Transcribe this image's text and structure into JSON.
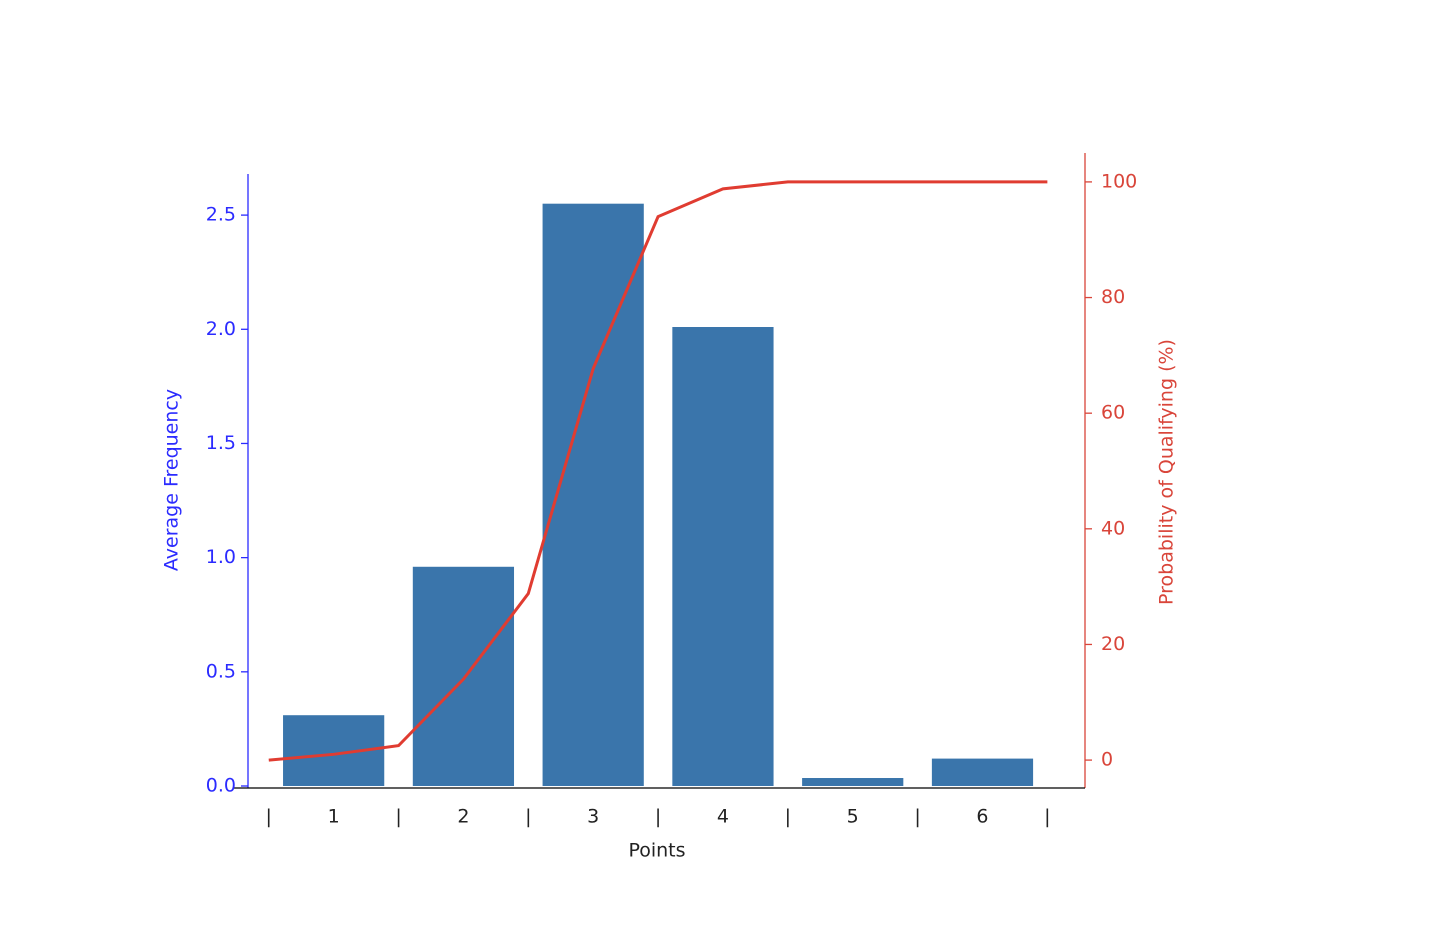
{
  "chart_data": {
    "type": "bar_line",
    "xlabel": "Points",
    "ylabel": "Average Frequency",
    "y2label": "Probability of Qualifying (%)",
    "xlim": [
      0.34,
      6.79
    ],
    "xticks": [
      {
        "value": 0.5,
        "label": "|"
      },
      1,
      {
        "value": 1.5,
        "label": "|"
      },
      2,
      {
        "value": 2.5,
        "label": "|"
      },
      3,
      {
        "value": 3.5,
        "label": "|"
      },
      4,
      {
        "value": 4.5,
        "label": "|"
      },
      5,
      {
        "value": 5.5,
        "label": "|"
      },
      6,
      {
        "value": 6.5,
        "label": "|"
      }
    ],
    "ylim": [
      0,
      2.68
    ],
    "yticks": [
      {
        "value": 0,
        "label": "0.0"
      },
      0.5,
      {
        "value": 1,
        "label": "1.0"
      },
      1.5,
      {
        "value": 2,
        "label": "2.0"
      },
      2.5
    ],
    "y2lim": [
      -5,
      105
    ],
    "y2ticks": [
      0,
      20,
      40,
      60,
      80,
      100
    ],
    "ycolor": "#2b2bff",
    "y2color": "#d9453a",
    "series": [
      {
        "type": "bar",
        "color": "#3a75ab",
        "x": [
          1,
          2,
          3,
          4,
          5,
          6
        ],
        "values": [
          0.31,
          0.96,
          2.55,
          2.01,
          0.035,
          0.12
        ]
      },
      {
        "type": "line",
        "axis": "y2",
        "color": "#e03c31",
        "x": [
          0.5,
          1,
          1.5,
          2,
          2.5,
          3,
          3.5,
          4,
          4.5,
          5,
          5.5,
          6,
          6.5
        ],
        "values": [
          0,
          1,
          2.5,
          14,
          28.8,
          67.7,
          94,
          98.8,
          100,
          100,
          100,
          100,
          100
        ]
      }
    ]
  }
}
